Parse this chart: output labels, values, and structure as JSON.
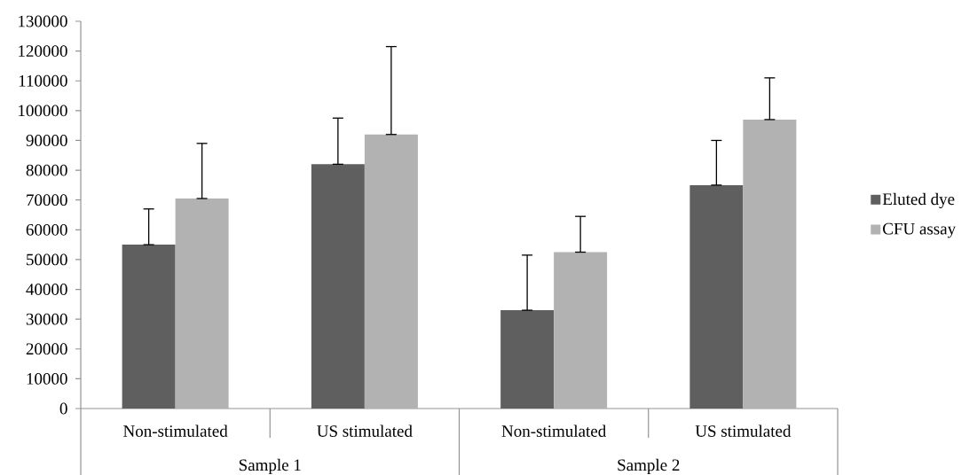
{
  "chart_data": {
    "type": "bar",
    "categories": [
      "Non-stimulated",
      "US stimulated",
      "Non-stimulated",
      "US stimulated"
    ],
    "series": [
      {
        "name": "Eluted dye",
        "color": "#5f5f5f",
        "values": [
          55000,
          82000,
          33000,
          75000
        ],
        "errors": [
          [
            55000,
            67000
          ],
          [
            82000,
            97500
          ],
          [
            33000,
            51500
          ],
          [
            75000,
            90000
          ]
        ]
      },
      {
        "name": "CFU assay",
        "color": "#b2b2b2",
        "values": [
          70500,
          92000,
          52500,
          97000
        ],
        "errors": [
          [
            70500,
            89000
          ],
          [
            92000,
            121500
          ],
          [
            52500,
            64500
          ],
          [
            97000,
            111000
          ]
        ]
      }
    ],
    "annotations": [
      "Sample 1",
      "Sample 2"
    ],
    "ylim": [
      0,
      130000
    ],
    "yticks": [
      0,
      10000,
      20000,
      30000,
      40000,
      50000,
      60000,
      70000,
      80000,
      90000,
      100000,
      110000,
      120000,
      130000
    ],
    "grid": false,
    "legend": "right"
  }
}
